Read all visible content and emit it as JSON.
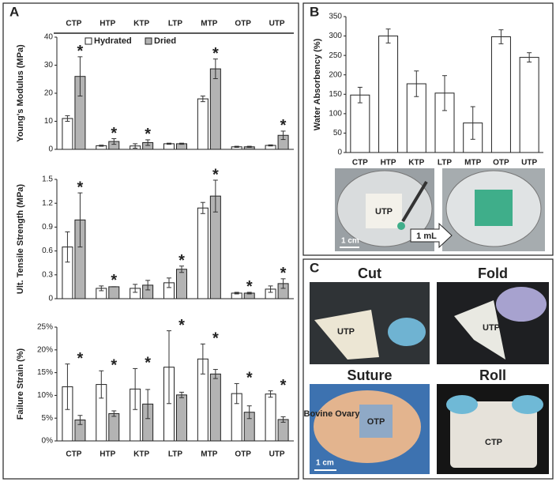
{
  "panels": [
    "A",
    "B",
    "C"
  ],
  "photos": {
    "b_left_label": "UTP",
    "b_scale": "1 cm",
    "b_arrow": "1 mL",
    "cut": "Cut",
    "cut_label": "UTP",
    "fold": "Fold",
    "fold_label": "UTP",
    "suture": "Suture",
    "suture_tissue": "Bovine Ovary",
    "suture_label": "OTP",
    "suture_scale": "1 cm",
    "roll": "Roll",
    "roll_label": "CTP"
  },
  "chart_data": [
    {
      "type": "bar",
      "y_label": "Young's Modulus (MPa)",
      "categories": [
        "CTP",
        "HTP",
        "KTP",
        "LTP",
        "MTP",
        "OTP",
        "UTP"
      ],
      "ylim": [
        0,
        40
      ],
      "yticks": [
        0,
        10,
        20,
        30,
        40
      ],
      "legend": "top",
      "series": [
        {
          "name": "Hydrated",
          "color": "#ffffff",
          "values": [
            11,
            1.3,
            1.2,
            2,
            18,
            0.9,
            1.4
          ],
          "errors": [
            1,
            0.2,
            0.8,
            0.2,
            1,
            0.2,
            0.2
          ]
        },
        {
          "name": "Dried",
          "color": "#b3b3b3",
          "values": [
            26,
            2.8,
            2.4,
            2,
            28.7,
            0.9,
            5
          ],
          "errors": [
            7,
            1,
            1,
            0.2,
            3.5,
            0.2,
            1.5
          ],
          "asterisks": [
            "*",
            "*",
            "*",
            null,
            "*",
            null,
            "*"
          ]
        }
      ]
    },
    {
      "type": "bar",
      "y_label": "Ult. Tensile Strength (MPa)",
      "ylim": [
        0,
        1.5
      ],
      "yticks": [
        0,
        0.3,
        0.6,
        0.9,
        1.2,
        1.5
      ],
      "series": [
        {
          "name": "Hydrated",
          "color": "#ffffff",
          "values": [
            0.65,
            0.13,
            0.13,
            0.2,
            1.14,
            0.07,
            0.12
          ],
          "errors": [
            0.19,
            0.03,
            0.05,
            0.06,
            0.07,
            0.01,
            0.04
          ]
        },
        {
          "name": "Dried",
          "color": "#b3b3b3",
          "values": [
            0.99,
            0.15,
            0.17,
            0.37,
            1.29,
            0.07,
            0.19
          ],
          "errors": [
            0.34,
            0,
            0.06,
            0.04,
            0.2,
            0.01,
            0.06
          ],
          "asterisks": [
            "*",
            "*",
            null,
            "*",
            "*",
            "*",
            "*"
          ]
        }
      ]
    },
    {
      "type": "bar",
      "y_label": "Failure Strain (%)",
      "categories": [
        "CTP",
        "HTP",
        "KTP",
        "LTP",
        "MTP",
        "OTP",
        "UTP"
      ],
      "ylim": [
        0,
        25
      ],
      "yticks": [
        {
          "value": 0,
          "label": "0%"
        },
        {
          "value": 5,
          "label": "5%"
        },
        {
          "value": 10,
          "label": "10%"
        },
        {
          "value": 15,
          "label": "15%"
        },
        {
          "value": 20,
          "label": "20%"
        },
        {
          "value": 25,
          "label": "25%"
        }
      ],
      "series": [
        {
          "name": "Hydrated",
          "color": "#ffffff",
          "values": [
            11.9,
            12.4,
            11.4,
            16.2,
            18,
            10.4,
            10.3
          ],
          "errors": [
            5,
            3,
            4.5,
            8,
            3.3,
            2.2,
            0.7
          ]
        },
        {
          "name": "Dried",
          "color": "#b3b3b3",
          "values": [
            4.6,
            6,
            8.1,
            10.1,
            14.7,
            6.3,
            4.7
          ],
          "errors": [
            1,
            0.6,
            3.2,
            0.6,
            1,
            1.4,
            0.6
          ],
          "asterisks": [
            "*",
            "*",
            "*",
            "*",
            "*",
            "*",
            "*"
          ]
        }
      ]
    },
    {
      "type": "bar",
      "y_label": "Water Absorbency (%)",
      "categories": [
        "CTP",
        "HTP",
        "KTP",
        "LTP",
        "MTP",
        "OTP",
        "UTP"
      ],
      "ylim": [
        0,
        350
      ],
      "yticks": [
        0,
        50,
        100,
        150,
        200,
        250,
        300,
        350
      ],
      "series": [
        {
          "color": "#ffffff",
          "values": [
            148,
            300,
            177,
            153,
            76,
            298,
            245
          ],
          "errors": [
            20,
            18,
            33,
            45,
            42,
            18,
            12
          ]
        }
      ]
    }
  ]
}
